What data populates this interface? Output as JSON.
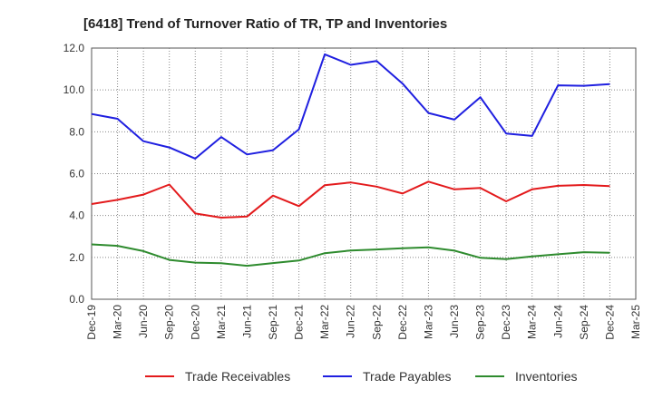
{
  "chart_data": {
    "type": "line",
    "title": "[6418]  Trend of Turnover Ratio of TR, TP and Inventories",
    "xlabel": "",
    "ylabel": "",
    "ylim": [
      0,
      12
    ],
    "yticks": [
      "0.0",
      "2.0",
      "4.0",
      "6.0",
      "8.0",
      "10.0",
      "12.0"
    ],
    "grid": true,
    "legend_position": "bottom",
    "categories": [
      "Dec-19",
      "Mar-20",
      "Jun-20",
      "Sep-20",
      "Dec-20",
      "Mar-21",
      "Jun-21",
      "Sep-21",
      "Dec-21",
      "Mar-22",
      "Jun-22",
      "Sep-22",
      "Dec-22",
      "Mar-23",
      "Jun-23",
      "Sep-23",
      "Dec-23",
      "Mar-24",
      "Jun-24",
      "Sep-24",
      "Dec-24",
      "Mar-25"
    ],
    "series": [
      {
        "name": "Trade Receivables",
        "color": "#e31a1c",
        "values": [
          4.55,
          4.75,
          5.0,
          5.48,
          4.1,
          3.9,
          3.95,
          4.95,
          4.45,
          5.45,
          5.58,
          5.38,
          5.05,
          5.62,
          5.25,
          5.32,
          4.68,
          5.25,
          5.42,
          5.46,
          5.4,
          null
        ]
      },
      {
        "name": "Trade Payables",
        "color": "#1f1fe0",
        "values": [
          8.85,
          8.62,
          7.55,
          7.25,
          6.72,
          7.75,
          6.92,
          7.12,
          8.12,
          11.7,
          11.2,
          11.38,
          10.3,
          8.9,
          8.58,
          9.65,
          7.92,
          7.8,
          10.22,
          10.2,
          10.28,
          null
        ]
      },
      {
        "name": "Inventories",
        "color": "#2e8b2e",
        "values": [
          2.62,
          2.55,
          2.3,
          1.88,
          1.75,
          1.72,
          1.6,
          1.73,
          1.85,
          2.2,
          2.33,
          2.38,
          2.44,
          2.48,
          2.32,
          1.98,
          1.92,
          2.05,
          2.15,
          2.25,
          2.22,
          null
        ]
      }
    ]
  }
}
